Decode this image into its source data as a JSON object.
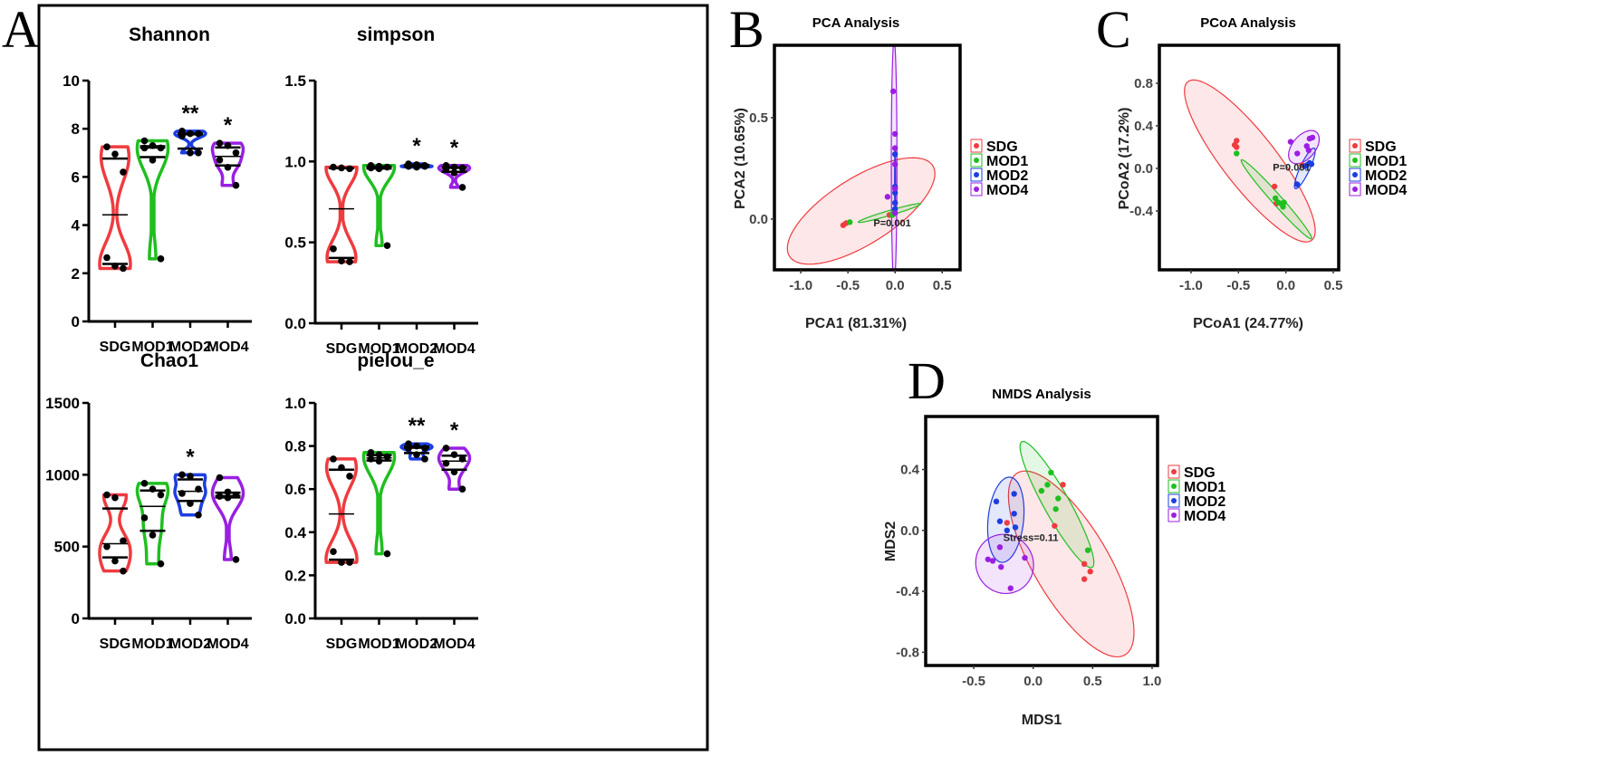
{
  "panel_letters": [
    "A",
    "B",
    "C",
    "D"
  ],
  "colors": {
    "SDG": "#ef3b3f",
    "MOD1": "#1fbf1f",
    "MOD2": "#1c3ee0",
    "MOD4": "#9a1fe2"
  },
  "chart_data": [
    {
      "type": "violin",
      "title": "Shannon",
      "categories": [
        "SDG",
        "MOD1",
        "MOD2",
        "MOD4"
      ],
      "ylim": [
        0,
        10
      ],
      "yticks": [
        0,
        2,
        4,
        6,
        8,
        10
      ],
      "points": [
        [
          7.25,
          6.95,
          6.2,
          2.65,
          2.3,
          2.2
        ],
        [
          7.5,
          7.3,
          7.2,
          7.2,
          6.7,
          2.6
        ],
        [
          7.9,
          7.8,
          7.8,
          7.7,
          7.0,
          7.0
        ],
        [
          7.4,
          7.3,
          7.0,
          6.7,
          6.4,
          5.65
        ]
      ],
      "significance": [
        "",
        "",
        "**",
        "*"
      ]
    },
    {
      "type": "violin",
      "title": "simpson",
      "categories": [
        "SDG",
        "MOD1",
        "MOD2",
        "MOD4"
      ],
      "ylim": [
        0,
        1.5
      ],
      "yticks": [
        0.0,
        0.5,
        1.0,
        1.5
      ],
      "tick_decimals": 1,
      "points": [
        [
          0.965,
          0.96,
          0.955,
          0.46,
          0.385,
          0.38
        ],
        [
          0.975,
          0.97,
          0.965,
          0.96,
          0.955,
          0.48
        ],
        [
          0.985,
          0.98,
          0.975,
          0.97,
          0.965,
          0.97
        ],
        [
          0.975,
          0.965,
          0.96,
          0.955,
          0.93,
          0.84
        ]
      ],
      "significance": [
        "",
        "",
        "*",
        "*"
      ]
    },
    {
      "type": "violin",
      "title": "Chao1",
      "categories": [
        "SDG",
        "MOD1",
        "MOD2",
        "MOD4"
      ],
      "ylim": [
        0,
        1500
      ],
      "yticks": [
        0,
        500,
        1000,
        1500
      ],
      "points": [
        [
          860,
          840,
          540,
          500,
          400,
          330
        ],
        [
          940,
          900,
          860,
          700,
          580,
          380
        ],
        [
          1000,
          990,
          900,
          870,
          800,
          720
        ],
        [
          980,
          880,
          860,
          850,
          840,
          410
        ]
      ],
      "significance": [
        "",
        "",
        "*",
        ""
      ]
    },
    {
      "type": "violin",
      "title": "pielou_e",
      "categories": [
        "SDG",
        "MOD1",
        "MOD2",
        "MOD4"
      ],
      "ylim": [
        0,
        1.0
      ],
      "yticks": [
        0.0,
        0.2,
        0.4,
        0.6,
        0.8,
        1.0
      ],
      "tick_decimals": 1,
      "points": [
        [
          0.74,
          0.7,
          0.66,
          0.31,
          0.26,
          0.26
        ],
        [
          0.77,
          0.76,
          0.75,
          0.74,
          0.73,
          0.3
        ],
        [
          0.81,
          0.8,
          0.79,
          0.79,
          0.76,
          0.74
        ],
        [
          0.79,
          0.76,
          0.74,
          0.72,
          0.68,
          0.6
        ]
      ],
      "significance": [
        "",
        "",
        "**",
        "*"
      ]
    },
    {
      "type": "scatter",
      "title": "PCA Analysis",
      "xlabel": "PCA1 (81.31%)",
      "ylabel": "PCA2 (10.65%)",
      "xlim": [
        -1.28,
        0.69
      ],
      "ylim": [
        -0.25,
        0.857
      ],
      "xticks": [
        "-1.0",
        "-0.5",
        "0.0",
        "0.5"
      ],
      "yticks": [
        "0.0",
        "0.5"
      ],
      "annotation": {
        "text": "P=0.001",
        "x": -0.03,
        "y": -0.035
      },
      "legend": [
        "SDG",
        "MOD1",
        "MOD2",
        "MOD4"
      ],
      "legend_position": "right",
      "series": [
        {
          "name": "SDG",
          "points": [
            [
              -0.55,
              -0.03
            ],
            [
              -0.52,
              -0.02
            ],
            [
              -0.06,
              0.02
            ]
          ],
          "ellipse": {
            "center": [
              -0.36,
              0.04
            ],
            "major": [
              0.78,
              0.2
            ],
            "minor": [
              -0.07,
              0.17
            ]
          }
        },
        {
          "name": "MOD1",
          "points": [
            [
              -0.48,
              -0.015
            ],
            [
              -0.03,
              0.02
            ],
            [
              -0.02,
              0.03
            ]
          ],
          "ellipse": {
            "center": [
              -0.06,
              0.03
            ],
            "major": [
              0.33,
              0.045
            ],
            "minor": [
              -0.005,
              0.012
            ]
          }
        },
        {
          "name": "MOD2",
          "points": [
            [
              0,
              0.05
            ],
            [
              0,
              0.08
            ],
            [
              0,
              0.13
            ],
            [
              0,
              0.16
            ],
            [
              0,
              0.32
            ]
          ],
          "ellipse": {
            "center": [
              0,
              0.18
            ],
            "major": [
              0,
              0.16
            ],
            "minor": [
              0.005,
              0
            ]
          }
        },
        {
          "name": "MOD4",
          "points": [
            [
              -0.02,
              0.63
            ],
            [
              0,
              0.42
            ],
            [
              0,
              0.35
            ],
            [
              0,
              0.27
            ],
            [
              0,
              0.15
            ],
            [
              -0.08,
              0.11
            ],
            [
              0,
              0.03
            ]
          ],
          "ellipse": {
            "center": [
              -0.01,
              0.28
            ],
            "major": [
              0,
              0.6
            ],
            "minor": [
              0.03,
              0
            ]
          }
        }
      ]
    },
    {
      "type": "scatter",
      "title": "PCoA Analysis",
      "xlabel": "PCoA1 (24.77%)",
      "ylabel": "PCoA2 (17.2%)",
      "xlim": [
        -1.334,
        0.557
      ],
      "ylim": [
        -0.953,
        1.157
      ],
      "xticks": [
        "-1.0",
        "-0.5",
        "0.0",
        "0.5"
      ],
      "yticks": [
        "-0.4",
        "0.0",
        "0.4",
        "0.8"
      ],
      "annotation": {
        "text": "P=0.001",
        "x": 0.06,
        "y": -0.02
      },
      "legend": [
        "SDG",
        "MOD1",
        "MOD2",
        "MOD4"
      ],
      "legend_position": "right",
      "series": [
        {
          "name": "SDG",
          "points": [
            [
              -0.52,
              0.26
            ],
            [
              -0.54,
              0.22
            ],
            [
              -0.52,
              0.2
            ],
            [
              -0.12,
              -0.17
            ],
            [
              -0.1,
              -0.33
            ],
            [
              0.17,
              0.03
            ]
          ],
          "ellipse": {
            "center": [
              -0.38,
              0.07
            ],
            "major": [
              0.66,
              -0.74
            ],
            "minor": [
              0.2,
              0.18
            ]
          }
        },
        {
          "name": "MOD1",
          "points": [
            [
              -0.52,
              0.14
            ],
            [
              -0.11,
              -0.28
            ],
            [
              -0.08,
              -0.32
            ],
            [
              -0.05,
              -0.33
            ],
            [
              -0.03,
              -0.36
            ],
            [
              -0.02,
              -0.32
            ]
          ],
          "ellipse": {
            "center": [
              -0.1,
              -0.29
            ],
            "major": [
              0.37,
              -0.37
            ],
            "minor": [
              0.035,
              0.035
            ]
          }
        },
        {
          "name": "MOD2",
          "points": [
            [
              0.12,
              -0.15
            ],
            [
              0.2,
              0.02
            ],
            [
              0.22,
              0.03
            ],
            [
              0.25,
              0.05
            ],
            [
              0.27,
              0.04
            ]
          ],
          "ellipse": {
            "center": [
              0.2,
              0.0
            ],
            "major": [
              0.1,
              0.19
            ],
            "minor": [
              0.045,
              -0.02
            ]
          }
        },
        {
          "name": "MOD4",
          "points": [
            [
              0.05,
              0.25
            ],
            [
              0.12,
              0.14
            ],
            [
              0.22,
              0.21
            ],
            [
              0.25,
              0.28
            ],
            [
              0.28,
              0.29
            ],
            [
              0.24,
              0.17
            ]
          ],
          "ellipse": {
            "center": [
              0.19,
              0.2
            ],
            "major": [
              0.15,
              0.12
            ],
            "minor": [
              -0.06,
              0.1
            ]
          }
        }
      ]
    },
    {
      "type": "scatter",
      "title": "NMDS Analysis",
      "xlabel": "MDS1",
      "ylabel": "MDS2",
      "xlim": [
        -0.904,
        1.046
      ],
      "ylim": [
        -0.887,
        0.748
      ],
      "xticks": [
        "-0.5",
        "0.0",
        "0.5",
        "1.0"
      ],
      "yticks": [
        "-0.8",
        "-0.4",
        "0.0",
        "0.4"
      ],
      "annotation": {
        "text": "Stress=0.11",
        "x": -0.02,
        "y": -0.07
      },
      "legend": [
        "SDG",
        "MOD1",
        "MOD2",
        "MOD4"
      ],
      "legend_position": "right",
      "series": [
        {
          "name": "SDG",
          "points": [
            [
              0.25,
              0.3
            ],
            [
              0.18,
              0.03
            ],
            [
              -0.22,
              0.05
            ],
            [
              0.43,
              -0.22
            ],
            [
              0.48,
              -0.27
            ],
            [
              0.43,
              -0.32
            ]
          ],
          "ellipse": {
            "center": [
              0.32,
              -0.22
            ],
            "major": [
              0.48,
              -0.58
            ],
            "minor": [
              0.22,
              0.19
            ]
          }
        },
        {
          "name": "MOD1",
          "points": [
            [
              0.15,
              0.38
            ],
            [
              0.12,
              0.3
            ],
            [
              0.07,
              0.26
            ],
            [
              0.21,
              0.21
            ],
            [
              0.19,
              0.14
            ],
            [
              0.46,
              -0.13
            ]
          ],
          "ellipse": {
            "center": [
              0.2,
              0.17
            ],
            "major": [
              0.3,
              -0.41
            ],
            "minor": [
              0.08,
              0.06
            ]
          }
        },
        {
          "name": "MOD2",
          "points": [
            [
              -0.31,
              0.19
            ],
            [
              -0.16,
              0.24
            ],
            [
              -0.16,
              0.11
            ],
            [
              -0.28,
              0.06
            ],
            [
              -0.22,
              0.0
            ],
            [
              -0.15,
              0.02
            ]
          ],
          "ellipse": {
            "center": [
              -0.23,
              0.07
            ],
            "major": [
              0.03,
              0.28
            ],
            "minor": [
              0.15,
              0
            ]
          }
        },
        {
          "name": "MOD4",
          "points": [
            [
              -0.28,
              -0.11
            ],
            [
              -0.38,
              -0.19
            ],
            [
              -0.34,
              -0.2
            ],
            [
              -0.27,
              -0.24
            ],
            [
              -0.07,
              -0.18
            ],
            [
              -0.19,
              -0.38
            ]
          ],
          "ellipse": {
            "center": [
              -0.24,
              -0.22
            ],
            "major": [
              0.24,
              -0.04
            ],
            "minor": [
              0.04,
              0.19
            ]
          }
        }
      ]
    }
  ]
}
